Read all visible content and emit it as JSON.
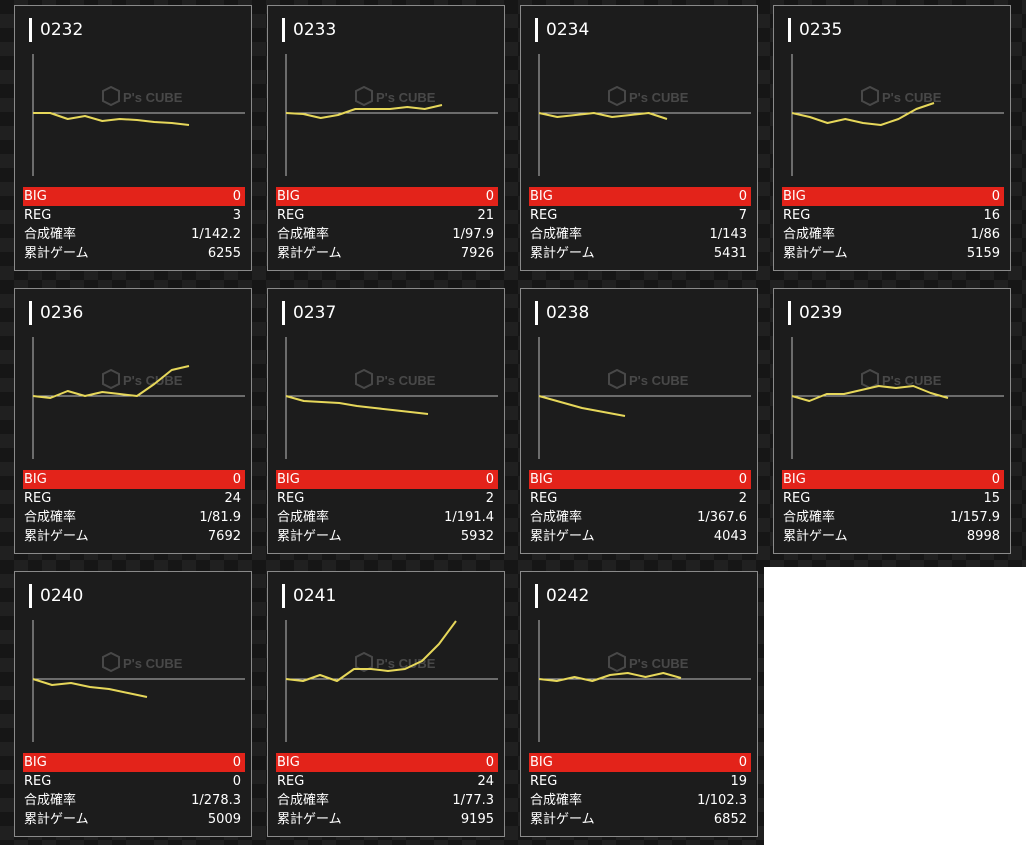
{
  "labels": {
    "big": "BIG",
    "reg": "REG",
    "rate": "合成確率",
    "games": "累計ゲーム"
  },
  "colors": {
    "line": "#e6d75a",
    "big_bar": "#e3231a",
    "background": "#161616",
    "card": "#1c1c1c"
  },
  "watermark": {
    "main": "P's CUBE",
    "icon": "cube-logo-icon"
  },
  "machines": [
    {
      "id": "0232",
      "big": "0",
      "reg": "3",
      "rate": "1/142.2",
      "games": "6255",
      "trend": [
        0,
        0,
        -6,
        -3,
        -8,
        -6,
        -7,
        -9,
        -10,
        -12
      ]
    },
    {
      "id": "0233",
      "big": "0",
      "reg": "21",
      "rate": "1/97.9",
      "games": "7926",
      "trend": [
        0,
        -1,
        -5,
        -2,
        4,
        4,
        4,
        6,
        4,
        8
      ]
    },
    {
      "id": "0234",
      "big": "0",
      "reg": "7",
      "rate": "1/143",
      "games": "5431",
      "trend": [
        0,
        -4,
        -2,
        0,
        -4,
        -2,
        0,
        -6
      ]
    },
    {
      "id": "0235",
      "big": "0",
      "reg": "16",
      "rate": "1/86",
      "games": "5159",
      "trend": [
        0,
        -4,
        -10,
        -6,
        -10,
        -12,
        -6,
        4,
        10
      ]
    },
    {
      "id": "0236",
      "big": "0",
      "reg": "24",
      "rate": "1/81.9",
      "games": "7692",
      "trend": [
        0,
        -2,
        5,
        0,
        4,
        2,
        0,
        12,
        26,
        30
      ]
    },
    {
      "id": "0237",
      "big": "0",
      "reg": "2",
      "rate": "1/191.4",
      "games": "5932",
      "trend": [
        0,
        -5,
        -6,
        -7,
        -10,
        -12,
        -14,
        -16,
        -18
      ]
    },
    {
      "id": "0238",
      "big": "0",
      "reg": "2",
      "rate": "1/367.6",
      "games": "4043",
      "trend": [
        0,
        -6,
        -12,
        -16,
        -20
      ]
    },
    {
      "id": "0239",
      "big": "0",
      "reg": "15",
      "rate": "1/157.9",
      "games": "8998",
      "trend": [
        0,
        -5,
        2,
        2,
        6,
        10,
        8,
        10,
        3,
        -2
      ]
    },
    {
      "id": "0240",
      "big": "0",
      "reg": "0",
      "rate": "1/278.3",
      "games": "5009",
      "trend": [
        0,
        -6,
        -4,
        -8,
        -10,
        -14,
        -18
      ]
    },
    {
      "id": "0241",
      "big": "0",
      "reg": "24",
      "rate": "1/77.3",
      "games": "9195",
      "trend": [
        0,
        -2,
        4,
        -2,
        10,
        10,
        8,
        10,
        18,
        35,
        58
      ]
    },
    {
      "id": "0242",
      "big": "0",
      "reg": "19",
      "rate": "1/102.3",
      "games": "6852",
      "trend": [
        0,
        -2,
        2,
        -2,
        4,
        6,
        2,
        6,
        1
      ]
    }
  ]
}
